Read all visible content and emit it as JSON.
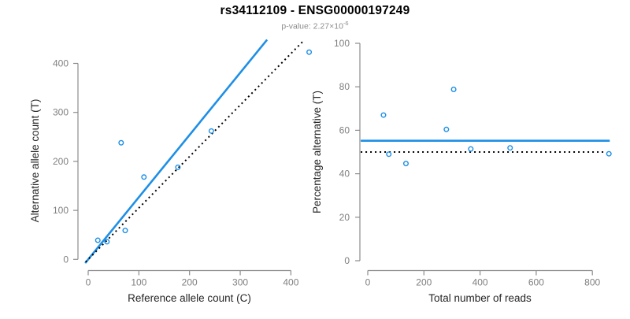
{
  "header": {
    "title": "rs34112109 - ENSG00000197249",
    "pvalue_base": "p-value: 2.27×10",
    "pvalue_exponent": "-6"
  },
  "colors": {
    "accent_blue": "#1E8FE6",
    "dotted_black": "#000000",
    "axis_gray": "#8C8C8C",
    "tick_label_gray": "#7F7F7F",
    "axis_title_dark": "#262626"
  },
  "chart_data": [
    {
      "type": "scatter",
      "xlabel": "Reference allele count (C)",
      "ylabel": "Alternative allele count (T)",
      "xticks": [
        0,
        100,
        200,
        300,
        400
      ],
      "yticks": [
        0,
        100,
        200,
        300,
        400
      ],
      "xlim": [
        0,
        440
      ],
      "ylim": [
        0,
        440
      ],
      "grid": false,
      "points": [
        [
          19,
          39
        ],
        [
          37,
          36
        ],
        [
          65,
          238
        ],
        [
          73,
          59
        ],
        [
          110,
          168
        ],
        [
          177,
          188
        ],
        [
          243,
          262
        ],
        [
          436,
          423
        ]
      ],
      "lines": [
        {
          "name": "fit-line",
          "style": "solid",
          "slope": 1.27,
          "intercept": 0,
          "x_from": -6,
          "x_to": 353
        },
        {
          "name": "expected-50pct-line",
          "style": "dotted",
          "slope": 1.05,
          "intercept": 0,
          "x_from": -5,
          "x_to": 424
        }
      ]
    },
    {
      "type": "scatter",
      "xlabel": "Total number of reads",
      "ylabel": "Percentage alternative (T)",
      "xticks": [
        0,
        200,
        400,
        600,
        800
      ],
      "yticks": [
        0,
        20,
        40,
        60,
        80,
        100
      ],
      "xlim": [
        0,
        870
      ],
      "ylim": [
        0,
        100
      ],
      "grid": false,
      "points": [
        [
          56,
          67
        ],
        [
          75,
          49
        ],
        [
          136,
          44.7
        ],
        [
          280,
          60.4
        ],
        [
          306,
          78.8
        ],
        [
          367,
          51.4
        ],
        [
          507,
          51.9
        ],
        [
          859,
          49.2
        ]
      ],
      "lines": [
        {
          "name": "mean-percentage-line",
          "style": "solid",
          "h": 55.2,
          "x_from": -25,
          "x_to": 862
        },
        {
          "name": "expected-50pct-line",
          "style": "dotted",
          "h": 50,
          "x_from": -25,
          "x_to": 842
        }
      ]
    }
  ]
}
